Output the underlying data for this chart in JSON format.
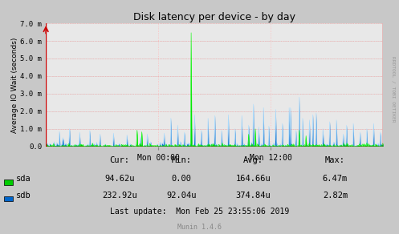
{
  "title": "Disk latency per device - by day",
  "ylabel": "Average IO Wait (seconds)",
  "right_label": "RRDTOOL / TOBI OETIKER",
  "x_tick_labels": [
    "Mon 00:00",
    "Mon 12:00"
  ],
  "x_tick_positions": [
    0.3333,
    0.6667
  ],
  "y_ticks": [
    0.0,
    1.0,
    2.0,
    3.0,
    4.0,
    5.0,
    6.0,
    7.0
  ],
  "y_tick_labels": [
    "0.0",
    "1.0 m",
    "2.0 m",
    "3.0 m",
    "4.0 m",
    "5.0 m",
    "6.0 m",
    "7.0 m"
  ],
  "ylim": [
    0,
    7.0
  ],
  "bg_color": "#c8c8c8",
  "plot_bg_color": "#e8e8e8",
  "grid_h_color": "#ff9999",
  "grid_v_color": "#ffbbbb",
  "grid_dot_color": "#cccccc",
  "sda_color": "#00cc00",
  "sdb_color": "#0066cc",
  "sdb_line_color": "#aaccff",
  "stats_header": [
    "Cur:",
    "Min:",
    "Avg:",
    "Max:"
  ],
  "stats_sda": [
    "94.62u",
    "0.00",
    "164.66u",
    "6.47m"
  ],
  "stats_sdb": [
    "232.92u",
    "92.04u",
    "374.84u",
    "2.82m"
  ],
  "last_update": "Last update:  Mon Feb 25 23:55:06 2019",
  "munin_label": "Munin 1.4.6",
  "num_points": 500,
  "arrow_color": "#cc0000",
  "border_color": "#cc0000"
}
